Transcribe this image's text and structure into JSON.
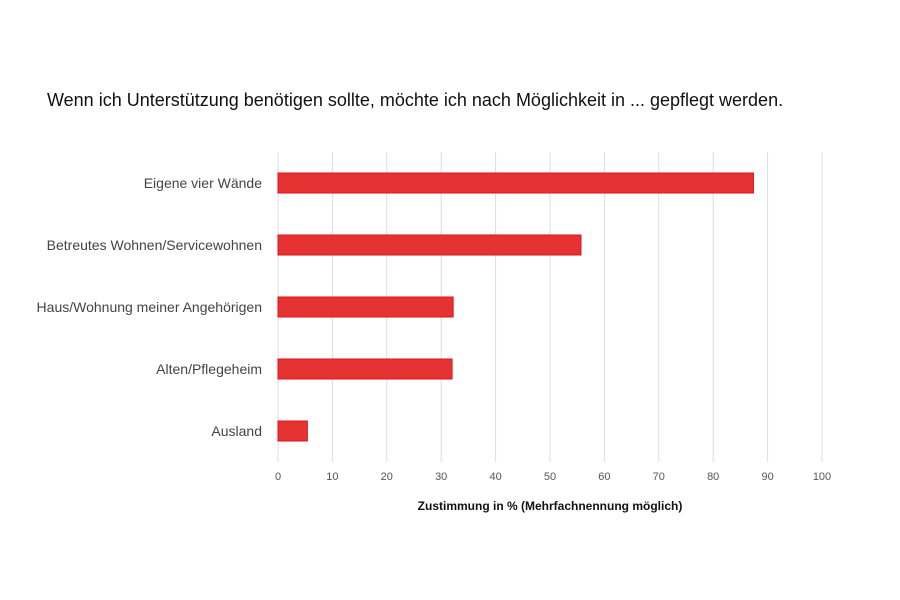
{
  "chart_data": {
    "type": "bar",
    "orientation": "horizontal",
    "title": "Wenn ich Unterstützung benötigen sollte, möchte ich nach Möglichkeit in ... gepflegt werden.",
    "categories": [
      "Eigene vier Wände",
      "Betreutes Wohnen/Servicewohnen",
      "Haus/Wohnung meiner Angehörigen",
      "Alten/Pflegeheim",
      "Ausland"
    ],
    "values": [
      87.4,
      55.7,
      32.2,
      32.0,
      5.4
    ],
    "xlabel": "Zustimmung in % (Mehrfachnennung möglich)",
    "ylabel": "",
    "xlim": [
      0,
      100
    ],
    "xticks": [
      "0",
      "10",
      "20",
      "30",
      "40",
      "50",
      "60",
      "70",
      "80",
      "90",
      "100"
    ],
    "grid": "vertical",
    "legend": "none",
    "colors": {
      "bar": "#e53333",
      "bar_border": "#e0131c",
      "grid": "#dddddd"
    }
  }
}
